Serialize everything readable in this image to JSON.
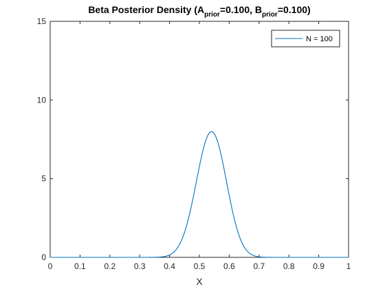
{
  "chart_data": {
    "type": "line",
    "title": {
      "prefix": "Beta Posterior Density (A",
      "a_subscript": "prior",
      "a_value": "=0.100, B",
      "b_subscript": "prior",
      "b_value": "=0.100)"
    },
    "xlabel": "X",
    "ylabel": "",
    "xlim": [
      0,
      1
    ],
    "ylim": [
      0,
      15
    ],
    "xticks": [
      "0",
      "0.1",
      "0.2",
      "0.3",
      "0.4",
      "0.5",
      "0.6",
      "0.7",
      "0.8",
      "0.9",
      "1"
    ],
    "yticks": [
      "0",
      "5",
      "10",
      "15"
    ],
    "grid": false,
    "legend": {
      "position": "top-right"
    },
    "series": [
      {
        "name": "N = 100",
        "color": "#0072BD",
        "distribution": "beta",
        "alpha": 54.1,
        "beta": 46.1,
        "peak": {
          "x": 0.54,
          "y": 7.98
        }
      }
    ]
  }
}
